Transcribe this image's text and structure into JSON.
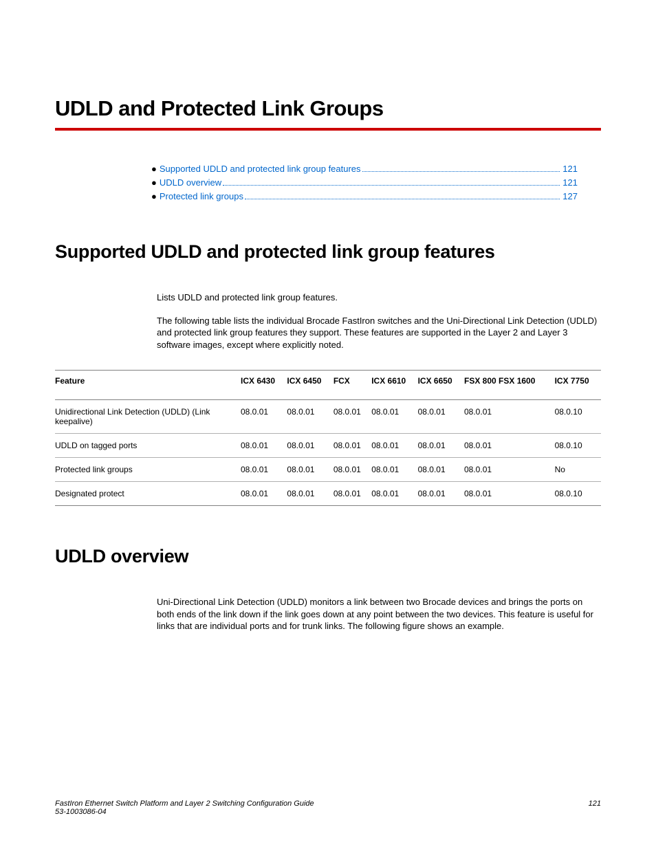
{
  "chapter_title": "UDLD and Protected Link Groups",
  "toc": {
    "items": [
      {
        "label": "Supported UDLD and protected link group features",
        "page": "121"
      },
      {
        "label": "UDLD overview",
        "page": "121"
      },
      {
        "label": "Protected link groups",
        "page": "127"
      }
    ]
  },
  "section1": {
    "title": "Supported UDLD and protected link group features",
    "intro": "Lists UDLD and protected link group features.",
    "para": "The following table lists the individual Brocade FastIron switches and the Uni-Directional Link Detection (UDLD) and protected link group features they support. These features are supported in the Layer 2 and Layer 3 software images, except where explicitly noted."
  },
  "table": {
    "columns": [
      "Feature",
      "ICX 6430",
      "ICX 6450",
      "FCX",
      "ICX 6610",
      "ICX 6650",
      "FSX 800 FSX 1600",
      "ICX 7750"
    ],
    "rows": [
      [
        "Unidirectional Link Detection (UDLD) (Link keepalive)",
        "08.0.01",
        "08.0.01",
        "08.0.01",
        "08.0.01",
        "08.0.01",
        "08.0.01",
        "08.0.10"
      ],
      [
        "UDLD on tagged ports",
        "08.0.01",
        "08.0.01",
        "08.0.01",
        "08.0.01",
        "08.0.01",
        "08.0.01",
        "08.0.10"
      ],
      [
        "Protected link groups",
        "08.0.01",
        "08.0.01",
        "08.0.01",
        "08.0.01",
        "08.0.01",
        "08.0.01",
        "No"
      ],
      [
        "Designated protect",
        "08.0.01",
        "08.0.01",
        "08.0.01",
        "08.0.01",
        "08.0.01",
        "08.0.01",
        "08.0.10"
      ]
    ]
  },
  "section2": {
    "title": "UDLD overview",
    "para": "Uni-Directional Link Detection (UDLD) monitors a link between two Brocade devices and brings the ports on both ends of the link down if the link goes down at any point between the two devices. This feature is useful for links that are individual ports and for trunk links. The following figure shows an example."
  },
  "footer": {
    "doc_title": "FastIron Ethernet Switch Platform and Layer 2 Switching Configuration Guide",
    "doc_number": "53-1003086-04",
    "page_number": "121"
  },
  "colors": {
    "rule": "#cc0000",
    "link": "#0066cc",
    "border_dark": "#808080",
    "border_light": "#b0b0b0",
    "text": "#000000",
    "bg": "#ffffff"
  },
  "typography": {
    "chapter_title_pt": 31,
    "section_title_pt": 27,
    "body_pt": 13,
    "table_pt": 12,
    "footer_pt": 11
  }
}
